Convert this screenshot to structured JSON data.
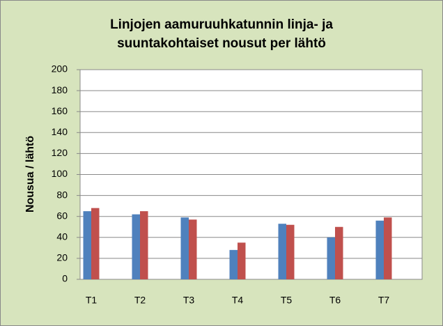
{
  "chart_data": {
    "type": "bar",
    "title": [
      "Linjojen aamuruuhkatunnin linja- ja",
      "suuntakohtaiset nousut per lähtö"
    ],
    "y_label": "Nousua / lähtö",
    "categories": [
      "T1",
      "T2",
      "T3",
      "T4",
      "T5",
      "T6",
      "T7"
    ],
    "series": [
      {
        "color": "#4f81bd",
        "values": [
          65,
          62,
          59,
          28,
          53,
          40,
          56
        ]
      },
      {
        "color": "#c0504d",
        "values": [
          68,
          65,
          57,
          35,
          52,
          50,
          59
        ]
      }
    ],
    "ylim": [
      0,
      200
    ],
    "yticks": [
      0,
      20,
      40,
      60,
      80,
      100,
      120,
      140,
      160,
      180,
      200
    ],
    "grid": true
  }
}
